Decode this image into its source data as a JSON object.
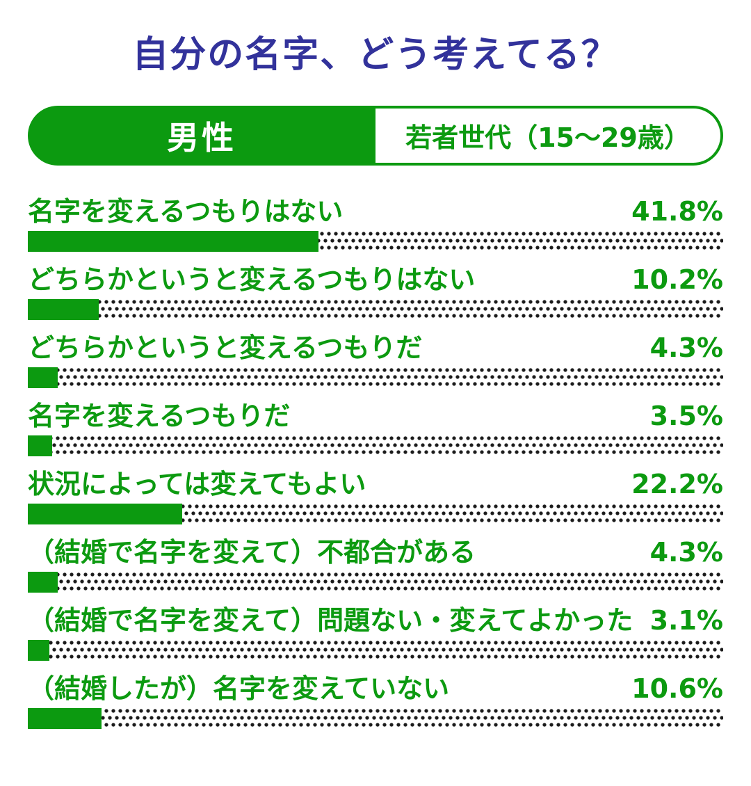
{
  "title": "自分の名字、どう考えてる？",
  "header": {
    "group_label": "男性",
    "cohort_label": "若者世代（15～29歳）"
  },
  "colors": {
    "green": "#0c9a10",
    "navy": "#32329b",
    "dot": "#1b1b1b"
  },
  "rows": [
    {
      "label": "名字を変えるつもりはない",
      "value_label": "41.8%",
      "pct": 41.8
    },
    {
      "label": "どちらかというと変えるつもりはない",
      "value_label": "10.2%",
      "pct": 10.2
    },
    {
      "label": "どちらかというと変えるつもりだ",
      "value_label": "4.3%",
      "pct": 4.3
    },
    {
      "label": "名字を変えるつもりだ",
      "value_label": "3.5%",
      "pct": 3.5
    },
    {
      "label": "状況によっては変えてもよい",
      "value_label": "22.2%",
      "pct": 22.2
    },
    {
      "label": "（結婚で名字を変えて）不都合がある",
      "value_label": "4.3%",
      "pct": 4.3
    },
    {
      "label": "（結婚で名字を変えて）問題ない・変えてよかった",
      "value_label": "3.1%",
      "pct": 3.1
    },
    {
      "label": "（結婚したが）名字を変えていない",
      "value_label": "10.6%",
      "pct": 10.6
    }
  ],
  "chart_data": {
    "type": "bar",
    "orientation": "horizontal",
    "title": "自分の名字、どう考えてる？",
    "group": "男性",
    "cohort": "若者世代（15～29歳）",
    "unit": "%",
    "xlim": [
      0,
      100
    ],
    "categories": [
      "名字を変えるつもりはない",
      "どちらかというと変えるつもりはない",
      "どちらかというと変えるつもりだ",
      "名字を変えるつもりだ",
      "状況によっては変えてもよい",
      "（結婚で名字を変えて）不都合がある",
      "（結婚で名字を変えて）問題ない・変えてよかった",
      "（結婚したが）名字を変えていない"
    ],
    "values": [
      41.8,
      10.2,
      4.3,
      3.5,
      22.2,
      4.3,
      3.1,
      10.6
    ],
    "bar_color": "#0c9a10",
    "track_style": "black polka dots on white",
    "legend_position": "none",
    "grid": false
  }
}
